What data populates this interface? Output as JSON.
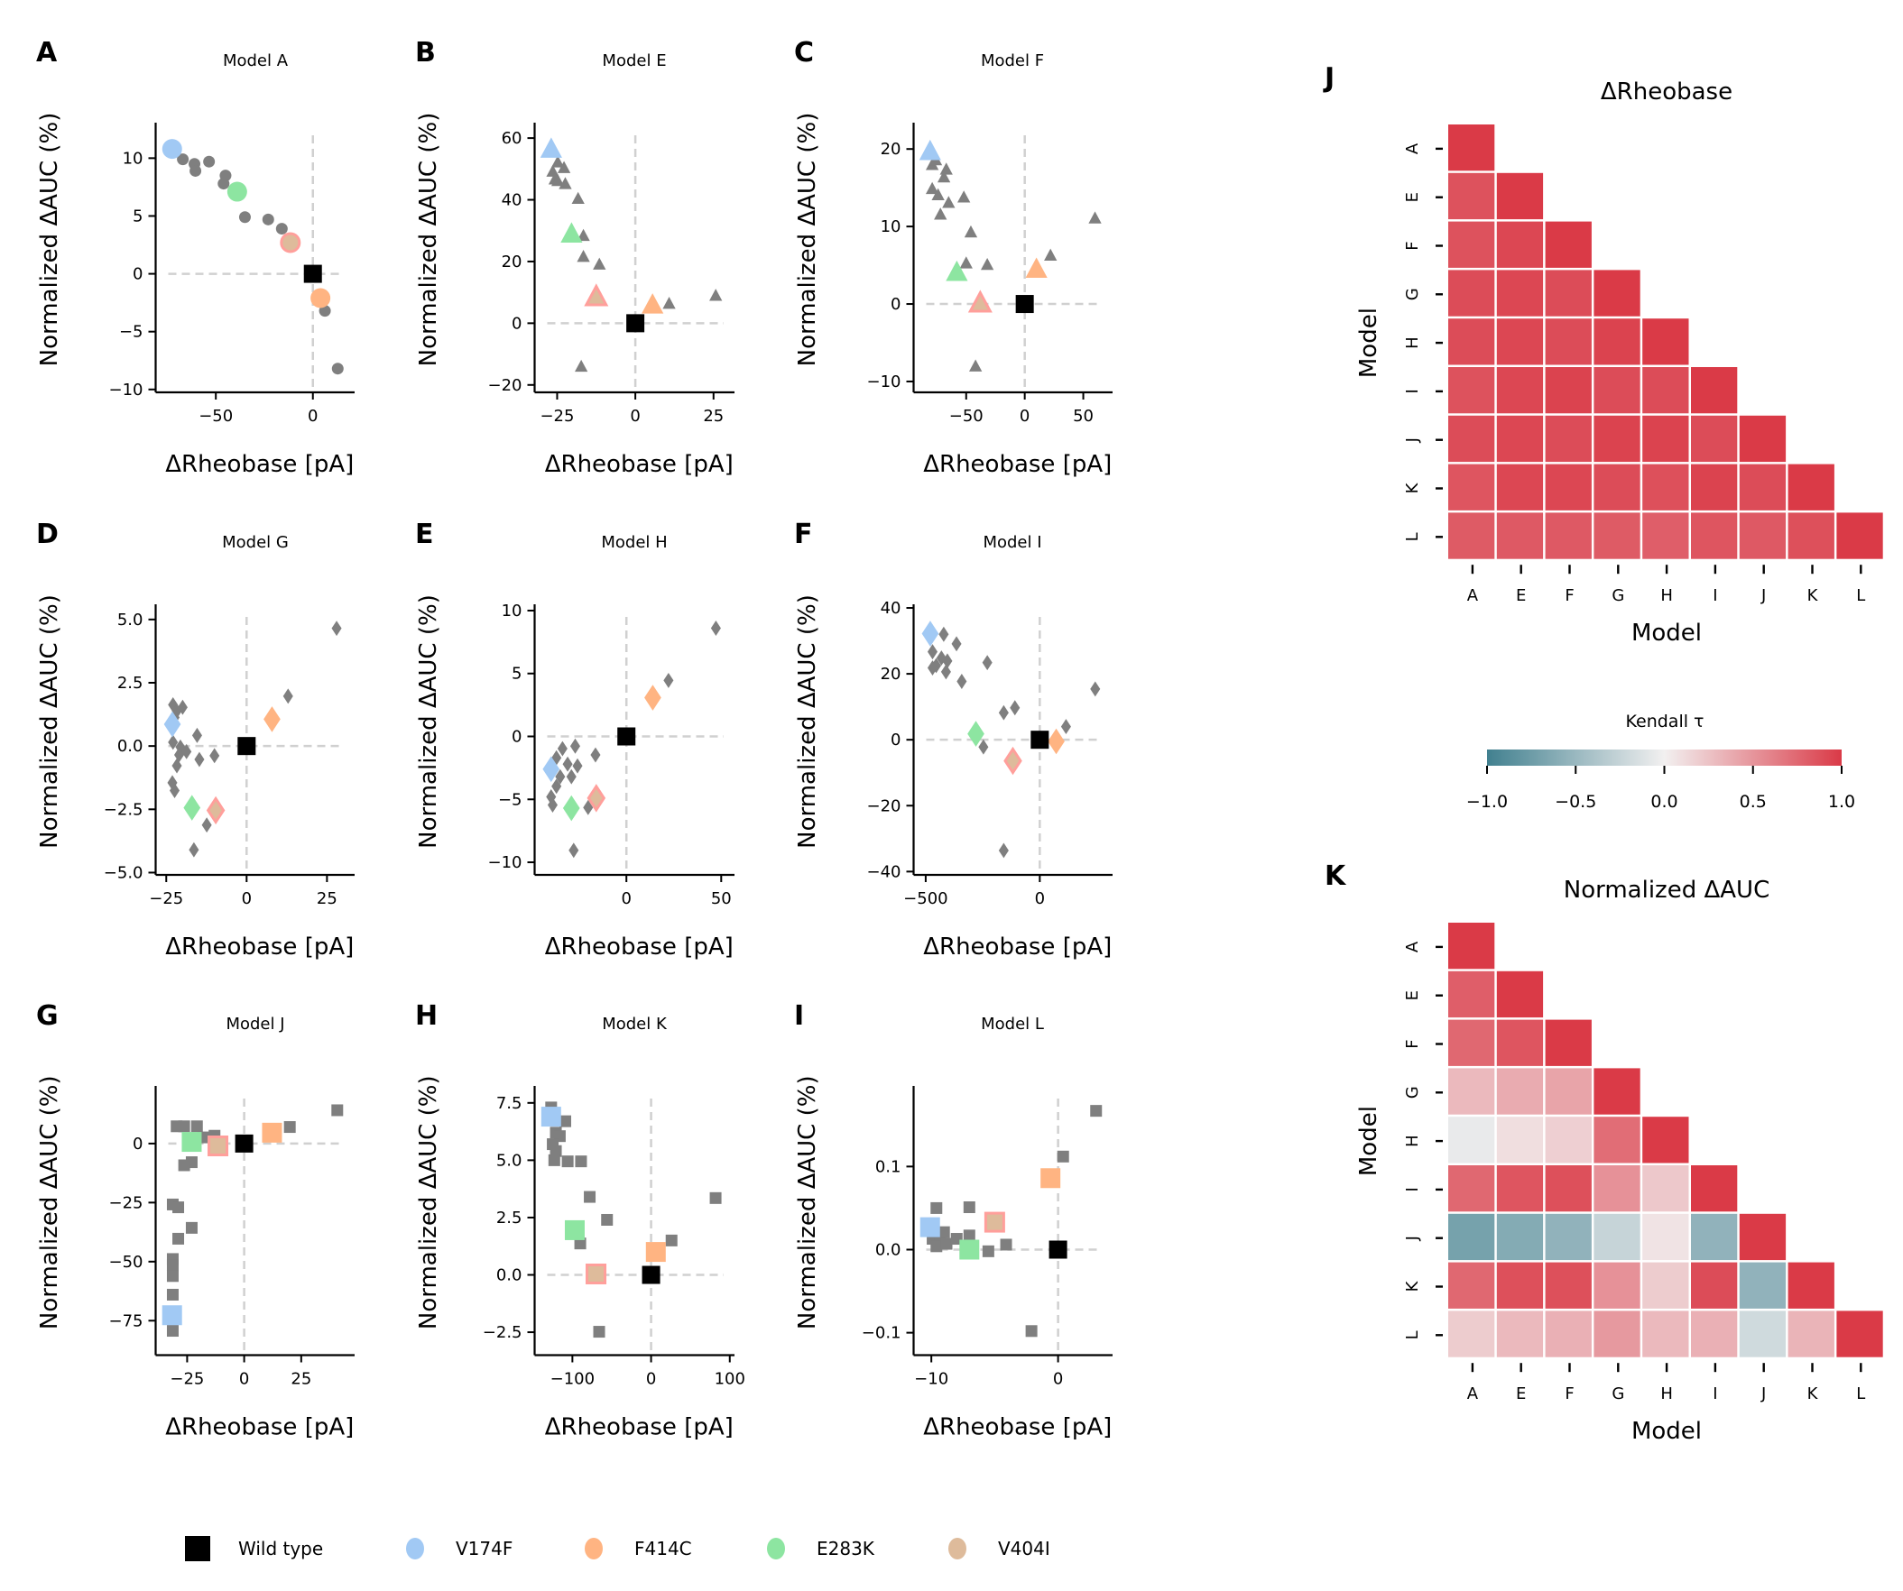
{
  "colors": {
    "background_points": "#7f7f7f",
    "wild_type": "#000000",
    "V174F": "#a1c9f4",
    "F414C": "#ffb482",
    "E283K": "#8de5a1",
    "V404I": "#debb9b",
    "V404I_edge": "#ff9f9b",
    "zero_line": "#d0d0d0",
    "cmap_low": "#41808f",
    "cmap_mid": "#f2f0f0",
    "cmap_high": "#da3a47"
  },
  "legend": {
    "items": [
      {
        "label": "Wild type",
        "key": "wild_type",
        "shape": "square"
      },
      {
        "label": "V174F",
        "key": "V174F",
        "shape": "circle"
      },
      {
        "label": "F414C",
        "key": "F414C",
        "shape": "circle"
      },
      {
        "label": "E283K",
        "key": "E283K",
        "shape": "circle"
      },
      {
        "label": "V404I",
        "key": "V404I",
        "shape": "circle"
      }
    ]
  },
  "chart_data": [
    {
      "type": "scatter",
      "letter": "A",
      "title": "Model A",
      "xlabel": "ΔRheobase [pA]",
      "ylabel": "Normalized ΔAUC (%)",
      "marker": "circle",
      "xlim": [
        -81,
        21.5
      ],
      "ylim": [
        -10.25,
        13.07
      ],
      "xticks": [
        -50,
        0
      ],
      "xtick_labels": [
        "−50",
        "0"
      ],
      "yticks": [
        -10,
        -5,
        0,
        5,
        10
      ],
      "ytick_labels": [
        "−10",
        "−5",
        "0",
        "5",
        "10"
      ],
      "background": [
        [
          -67,
          9.9
        ],
        [
          -61,
          9.5
        ],
        [
          -60.5,
          8.9
        ],
        [
          -53.5,
          9.7
        ],
        [
          -45,
          8.5
        ],
        [
          -46,
          7.8
        ],
        [
          -35,
          4.9
        ],
        [
          -23,
          4.7
        ],
        [
          -16,
          3.9
        ],
        [
          6.2,
          -3.2
        ],
        [
          12.8,
          -8.2
        ]
      ],
      "wild_type": [
        0,
        0
      ],
      "V174F": [
        -72.5,
        10.8
      ],
      "F414C": [
        3.9,
        -2.1
      ],
      "E283K": [
        -39,
        7.1
      ],
      "V404I": [
        -11.6,
        2.7
      ]
    },
    {
      "type": "scatter",
      "letter": "B",
      "title": "Model E",
      "xlabel": "ΔRheobase [pA]",
      "ylabel": "Normalized ΔAUC (%)",
      "marker": "triangle",
      "xlim": [
        -32.2,
        31.7
      ],
      "ylim": [
        -22.4,
        65
      ],
      "xticks": [
        -25,
        0,
        25
      ],
      "xtick_labels": [
        "−25",
        "0",
        "25"
      ],
      "yticks": [
        -20,
        0,
        20,
        40,
        60
      ],
      "ytick_labels": [
        "−20",
        "0",
        "20",
        "40",
        "60"
      ],
      "background": [
        [
          -26.4,
          49
        ],
        [
          -24.8,
          52
        ],
        [
          -22.8,
          50.2
        ],
        [
          -25.7,
          46.5
        ],
        [
          -22.4,
          45
        ],
        [
          -24.8,
          46
        ],
        [
          -18.3,
          40.2
        ],
        [
          -16.6,
          28.2
        ],
        [
          -16.6,
          21.4
        ],
        [
          -11.5,
          18.9
        ],
        [
          -17.3,
          -14.2
        ],
        [
          10.8,
          6.2
        ],
        [
          25.7,
          8.8
        ]
      ],
      "wild_type": [
        0,
        0
      ],
      "V174F": [
        -26.9,
        56.2
      ],
      "F414C": [
        5.5,
        5.7
      ],
      "E283K": [
        -20.4,
        28.7
      ],
      "V404I": [
        -12.5,
        8.3
      ]
    },
    {
      "type": "scatter",
      "letter": "C",
      "title": "Model F",
      "xlabel": "ΔRheobase [pA]",
      "ylabel": "Normalized ΔAUC (%)",
      "marker": "triangle",
      "xlim": [
        -94.9,
        75
      ],
      "ylim": [
        -11.4,
        23.4
      ],
      "xticks": [
        -50,
        0,
        50
      ],
      "xtick_labels": [
        "−50",
        "0",
        "50"
      ],
      "yticks": [
        -10,
        0,
        10,
        20
      ],
      "ytick_labels": [
        "−10",
        "0",
        "10",
        "20"
      ],
      "background": [
        [
          -79,
          17.9
        ],
        [
          -76,
          18.5
        ],
        [
          -67,
          17.3
        ],
        [
          -69,
          16.3
        ],
        [
          -79,
          14.8
        ],
        [
          -74,
          14
        ],
        [
          -65,
          13
        ],
        [
          -52,
          13.7
        ],
        [
          -72,
          11.5
        ],
        [
          -46,
          9.2
        ],
        [
          -50,
          5.2
        ],
        [
          -32,
          5
        ],
        [
          22,
          6.2
        ],
        [
          60,
          11
        ],
        [
          -42,
          -8.1
        ]
      ],
      "wild_type": [
        0,
        0
      ],
      "V174F": [
        -80.8,
        19.6
      ],
      "F414C": [
        10,
        4.4
      ],
      "E283K": [
        -58,
        4
      ],
      "V404I": [
        -38,
        0
      ]
    },
    {
      "type": "scatter",
      "letter": "D",
      "title": "Model G",
      "xlabel": "ΔRheobase [pA]",
      "ylabel": "Normalized ΔAUC (%)",
      "marker": "diamond",
      "xlim": [
        -28.3,
        33.6
      ],
      "ylim": [
        -5.09,
        5.6
      ],
      "xticks": [
        -25,
        0,
        25
      ],
      "xtick_labels": [
        "−25",
        "0",
        "25"
      ],
      "yticks": [
        -5,
        -2.5,
        0,
        2.5,
        5
      ],
      "ytick_labels": [
        "−5.0",
        "−2.5",
        "0.0",
        "2.5",
        "5.0"
      ],
      "background": [
        [
          -22.9,
          1.63
        ],
        [
          -19.9,
          1.53
        ],
        [
          -21.7,
          1.38
        ],
        [
          -22.4,
          1.13
        ],
        [
          -22.9,
          0.15
        ],
        [
          -20.6,
          -0.04
        ],
        [
          -18.7,
          -0.22
        ],
        [
          -21,
          -0.35
        ],
        [
          -21.7,
          -0.78
        ],
        [
          -15.4,
          0.42
        ],
        [
          -14.7,
          -0.53
        ],
        [
          -10,
          -0.38
        ],
        [
          -23.1,
          -1.45
        ],
        [
          -22.4,
          -1.76
        ],
        [
          -12.4,
          -3.12
        ],
        [
          -16.4,
          -4.1
        ],
        [
          12.9,
          1.97
        ],
        [
          28,
          4.65
        ]
      ],
      "wild_type": [
        0,
        0
      ],
      "V174F": [
        -23.1,
        0.86
      ],
      "F414C": [
        7.9,
        1.06
      ],
      "E283K": [
        -17,
        -2.44
      ],
      "V404I": [
        -9.6,
        -2.54
      ]
    },
    {
      "type": "scatter",
      "letter": "E",
      "title": "Model H",
      "xlabel": "ΔRheobase [pA]",
      "ylabel": "Normalized ΔAUC (%)",
      "marker": "diamond",
      "xlim": [
        -48.4,
        57
      ],
      "ylim": [
        -11,
        10.5
      ],
      "xticks": [
        0,
        50
      ],
      "xtick_labels": [
        "0",
        "50"
      ],
      "yticks": [
        -10,
        -5,
        0,
        5,
        10
      ],
      "ytick_labels": [
        "−10",
        "−5",
        "0",
        "5",
        "10"
      ],
      "background": [
        [
          -36.9,
          -1.7
        ],
        [
          -33.7,
          -0.97
        ],
        [
          -27,
          -0.77
        ],
        [
          -31,
          -2.2
        ],
        [
          -25.8,
          -2.34
        ],
        [
          -34.9,
          -3.2
        ],
        [
          -36.9,
          -3.96
        ],
        [
          -39.7,
          -4.8
        ],
        [
          -38.9,
          -5.45
        ],
        [
          -29,
          -3.2
        ],
        [
          -16.3,
          -1.47
        ],
        [
          -20.2,
          -5.65
        ],
        [
          -27.8,
          -9.05
        ],
        [
          22.2,
          4.45
        ],
        [
          47.2,
          8.6
        ]
      ],
      "wild_type": [
        0,
        0
      ],
      "V174F": [
        -39.7,
        -2.6
      ],
      "F414C": [
        13.9,
        3.08
      ],
      "E283K": [
        -29,
        -5.7
      ],
      "V404I": [
        -15.9,
        -4.9
      ]
    },
    {
      "type": "scatter",
      "letter": "F",
      "title": "Model I",
      "xlabel": "ΔRheobase [pA]",
      "ylabel": "Normalized ΔAUC (%)",
      "marker": "diamond",
      "xlim": [
        -553,
        319
      ],
      "ylim": [
        -41,
        41.1
      ],
      "xticks": [
        -500,
        0
      ],
      "xtick_labels": [
        "−500",
        "0"
      ],
      "yticks": [
        -40,
        -20,
        0,
        20,
        40
      ],
      "ytick_labels": [
        "−40",
        "−20",
        "0",
        "20",
        "40"
      ],
      "background": [
        [
          -421,
          32
        ],
        [
          -365,
          29.1
        ],
        [
          -470,
          26.7
        ],
        [
          -431,
          24.8
        ],
        [
          -405,
          23.9
        ],
        [
          -454,
          22.5
        ],
        [
          -470,
          21.8
        ],
        [
          -411,
          20.6
        ],
        [
          -342,
          17.7
        ],
        [
          -230,
          23.4
        ],
        [
          -158,
          8.2
        ],
        [
          -109,
          9.7
        ],
        [
          115,
          4
        ],
        [
          243,
          15.4
        ],
        [
          -247,
          -2.2
        ],
        [
          -158,
          -33.6
        ]
      ],
      "wild_type": [
        0,
        0
      ],
      "V174F": [
        -480,
        32.2
      ],
      "F414C": [
        72,
        -0.5
      ],
      "E283K": [
        -280,
        1.8
      ],
      "V404I": [
        -118,
        -6.4
      ]
    },
    {
      "type": "scatter",
      "letter": "G",
      "title": "Model J",
      "xlabel": "ΔRheobase [pA]",
      "ylabel": "Normalized ΔAUC (%)",
      "marker": "square",
      "xlim": [
        -38.8,
        48.4
      ],
      "ylim": [
        -89.6,
        24.4
      ],
      "xticks": [
        -25,
        0,
        25
      ],
      "xtick_labels": [
        "−25",
        "0",
        "25"
      ],
      "yticks": [
        -75,
        -50,
        -25,
        0
      ],
      "ytick_labels": [
        "−75",
        "−50",
        "−25",
        "0"
      ],
      "background": [
        [
          -29.6,
          7.3
        ],
        [
          -26.3,
          7.3
        ],
        [
          -20.7,
          7.3
        ],
        [
          -18,
          2.6
        ],
        [
          -13,
          3.3
        ],
        [
          -26.3,
          -9.2
        ],
        [
          -23,
          -7.9
        ],
        [
          -31.3,
          -25.8
        ],
        [
          -28.9,
          -27
        ],
        [
          -23,
          -35.7
        ],
        [
          -28.9,
          -40.3
        ],
        [
          -31.3,
          -48.9
        ],
        [
          -31.3,
          -51.5
        ],
        [
          -31.3,
          -56.1
        ],
        [
          -31.3,
          -64
        ],
        [
          -31.3,
          -79.3
        ],
        [
          20,
          7
        ],
        [
          40.8,
          14.1
        ]
      ],
      "wild_type": [
        0,
        0
      ],
      "V174F": [
        -31.6,
        -72.7
      ],
      "F414C": [
        12.2,
        4.6
      ],
      "E283K": [
        -23,
        0.7
      ],
      "V404I": [
        -11.5,
        -1
      ]
    },
    {
      "type": "scatter",
      "letter": "H",
      "title": "Model K",
      "xlabel": "ΔRheobase [pA]",
      "ylabel": "Normalized ΔAUC (%)",
      "marker": "square",
      "xlim": [
        -148,
        106
      ],
      "ylim": [
        -3.5,
        8.24
      ],
      "xticks": [
        -100,
        0,
        100
      ],
      "xtick_labels": [
        "−100",
        "0",
        "100"
      ],
      "yticks": [
        -2.5,
        0,
        2.5,
        5,
        7.5
      ],
      "ytick_labels": [
        "−2.5",
        "0.0",
        "2.5",
        "5.0",
        "7.5"
      ],
      "background": [
        [
          -127,
          7.3
        ],
        [
          -109,
          6.7
        ],
        [
          -121,
          6.2
        ],
        [
          -116,
          6.05
        ],
        [
          -125,
          5.7
        ],
        [
          -121,
          5.4
        ],
        [
          -123,
          5
        ],
        [
          -106,
          4.95
        ],
        [
          -89,
          4.95
        ],
        [
          -78,
          3.4
        ],
        [
          -56,
          2.4
        ],
        [
          -90,
          1.37
        ],
        [
          26,
          1.5
        ],
        [
          82,
          3.35
        ],
        [
          -66,
          -2.48
        ]
      ],
      "wild_type": [
        0,
        0
      ],
      "V174F": [
        -127,
        6.9
      ],
      "F414C": [
        6,
        1
      ],
      "E283K": [
        -97,
        1.95
      ],
      "V404I": [
        -70,
        0.04
      ]
    },
    {
      "type": "scatter",
      "letter": "I",
      "title": "Model L",
      "xlabel": "ΔRheobase [pA]",
      "ylabel": "Normalized ΔAUC (%)",
      "marker": "square",
      "xlim": [
        -11.4,
        4.3
      ],
      "ylim": [
        -0.127,
        0.197
      ],
      "xticks": [
        -10,
        0
      ],
      "xtick_labels": [
        "−10",
        "0"
      ],
      "yticks": [
        -0.1,
        0,
        0.1
      ],
      "ytick_labels": [
        "−0.1",
        "0.0",
        "0.1"
      ],
      "background": [
        [
          -9.6,
          0.05
        ],
        [
          -7,
          0.051
        ],
        [
          -9.9,
          0.013
        ],
        [
          -9.3,
          0.009
        ],
        [
          -9.6,
          0.004
        ],
        [
          -9,
          0.021
        ],
        [
          -8.8,
          0.007
        ],
        [
          -8,
          0.013
        ],
        [
          -7,
          0.017
        ],
        [
          -5.5,
          -0.002
        ],
        [
          -4.1,
          0.006
        ],
        [
          0.4,
          0.112
        ],
        [
          3,
          0.167
        ],
        [
          -2.1,
          -0.098
        ]
      ],
      "wild_type": [
        0,
        0
      ],
      "V174F": [
        -10.1,
        0.027
      ],
      "F414C": [
        -0.6,
        0.086
      ],
      "E283K": [
        -7,
        0.0
      ],
      "V404I": [
        -5,
        0.033
      ]
    },
    {
      "type": "heatmap",
      "letter": "J",
      "title": "ΔRheobase",
      "xlabel": "Model",
      "ylabel": "Model",
      "categories": [
        "A",
        "E",
        "F",
        "G",
        "H",
        "I",
        "J",
        "K",
        "L"
      ],
      "values": [
        [
          1
        ],
        [
          0.87,
          1
        ],
        [
          0.87,
          0.93,
          1
        ],
        [
          0.9,
          0.93,
          0.9,
          1
        ],
        [
          0.9,
          0.93,
          0.9,
          0.95,
          1
        ],
        [
          0.87,
          0.93,
          0.95,
          0.9,
          0.9,
          1
        ],
        [
          0.9,
          0.93,
          0.9,
          0.95,
          0.95,
          0.9,
          1
        ],
        [
          0.85,
          0.93,
          0.93,
          0.9,
          0.88,
          0.95,
          0.9,
          1
        ],
        [
          0.82,
          0.83,
          0.83,
          0.82,
          0.8,
          0.85,
          0.83,
          0.88,
          1
        ]
      ]
    },
    {
      "type": "heatmap",
      "letter": "K",
      "title": "Normalized ΔAUC",
      "xlabel": "Model",
      "ylabel": "Model",
      "categories": [
        "A",
        "E",
        "F",
        "G",
        "H",
        "I",
        "J",
        "K",
        "L"
      ],
      "values": [
        [
          1
        ],
        [
          0.8,
          1
        ],
        [
          0.75,
          0.85,
          1
        ],
        [
          0.3,
          0.38,
          0.42,
          1
        ],
        [
          -0.05,
          0.1,
          0.18,
          0.72,
          1
        ],
        [
          0.75,
          0.85,
          0.88,
          0.52,
          0.22,
          1
        ],
        [
          -0.7,
          -0.62,
          -0.55,
          -0.25,
          0.07,
          -0.55,
          1
        ],
        [
          0.75,
          0.88,
          0.88,
          0.52,
          0.2,
          0.9,
          -0.55,
          1
        ],
        [
          0.2,
          0.3,
          0.35,
          0.48,
          0.3,
          0.35,
          -0.2,
          0.33,
          1
        ]
      ]
    }
  ],
  "colorbar": {
    "label": "Kendall τ",
    "range": [
      -1,
      1
    ],
    "ticks": [
      -1,
      -0.5,
      0,
      0.5,
      1
    ],
    "tick_labels": [
      "−1.0",
      "−0.5",
      "0.0",
      "0.5",
      "1.0"
    ]
  }
}
